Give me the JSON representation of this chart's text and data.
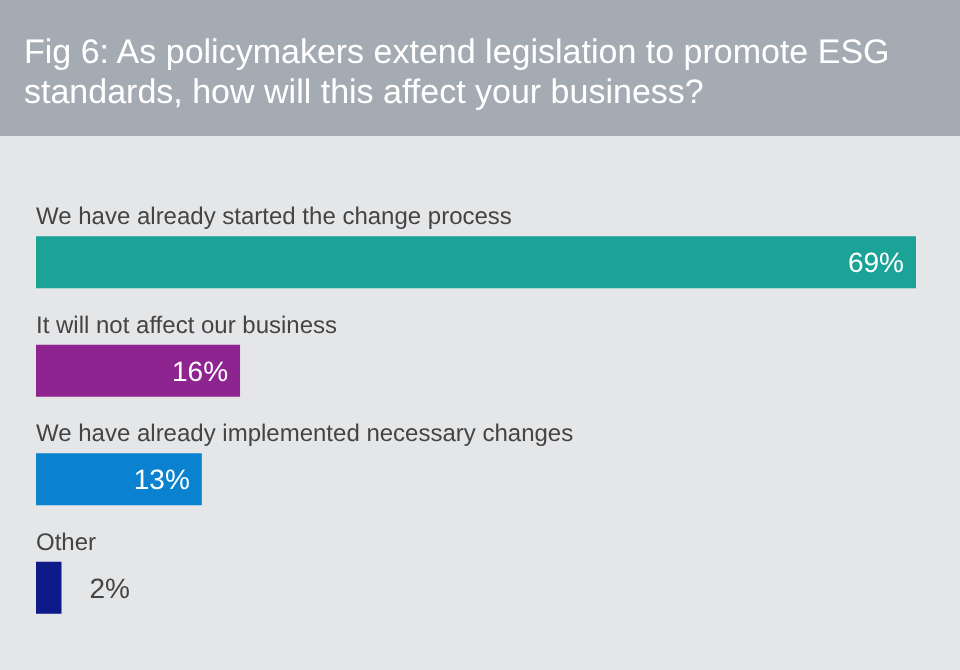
{
  "chart_data": {
    "type": "bar",
    "orientation": "horizontal",
    "title": "Fig 6: As policymakers extend legislation to promote ESG standards, how will this affect your business?",
    "categories": [
      "We have already started the change process",
      "It will not affect our business",
      "We have already implemented necessary changes",
      "Other"
    ],
    "values": [
      69,
      16,
      13,
      2
    ],
    "colors": [
      "#1aa396",
      "#8e2490",
      "#0a82d0",
      "#0d1a87"
    ],
    "value_labels": [
      "69%",
      "16%",
      "13%",
      "2%"
    ]
  }
}
